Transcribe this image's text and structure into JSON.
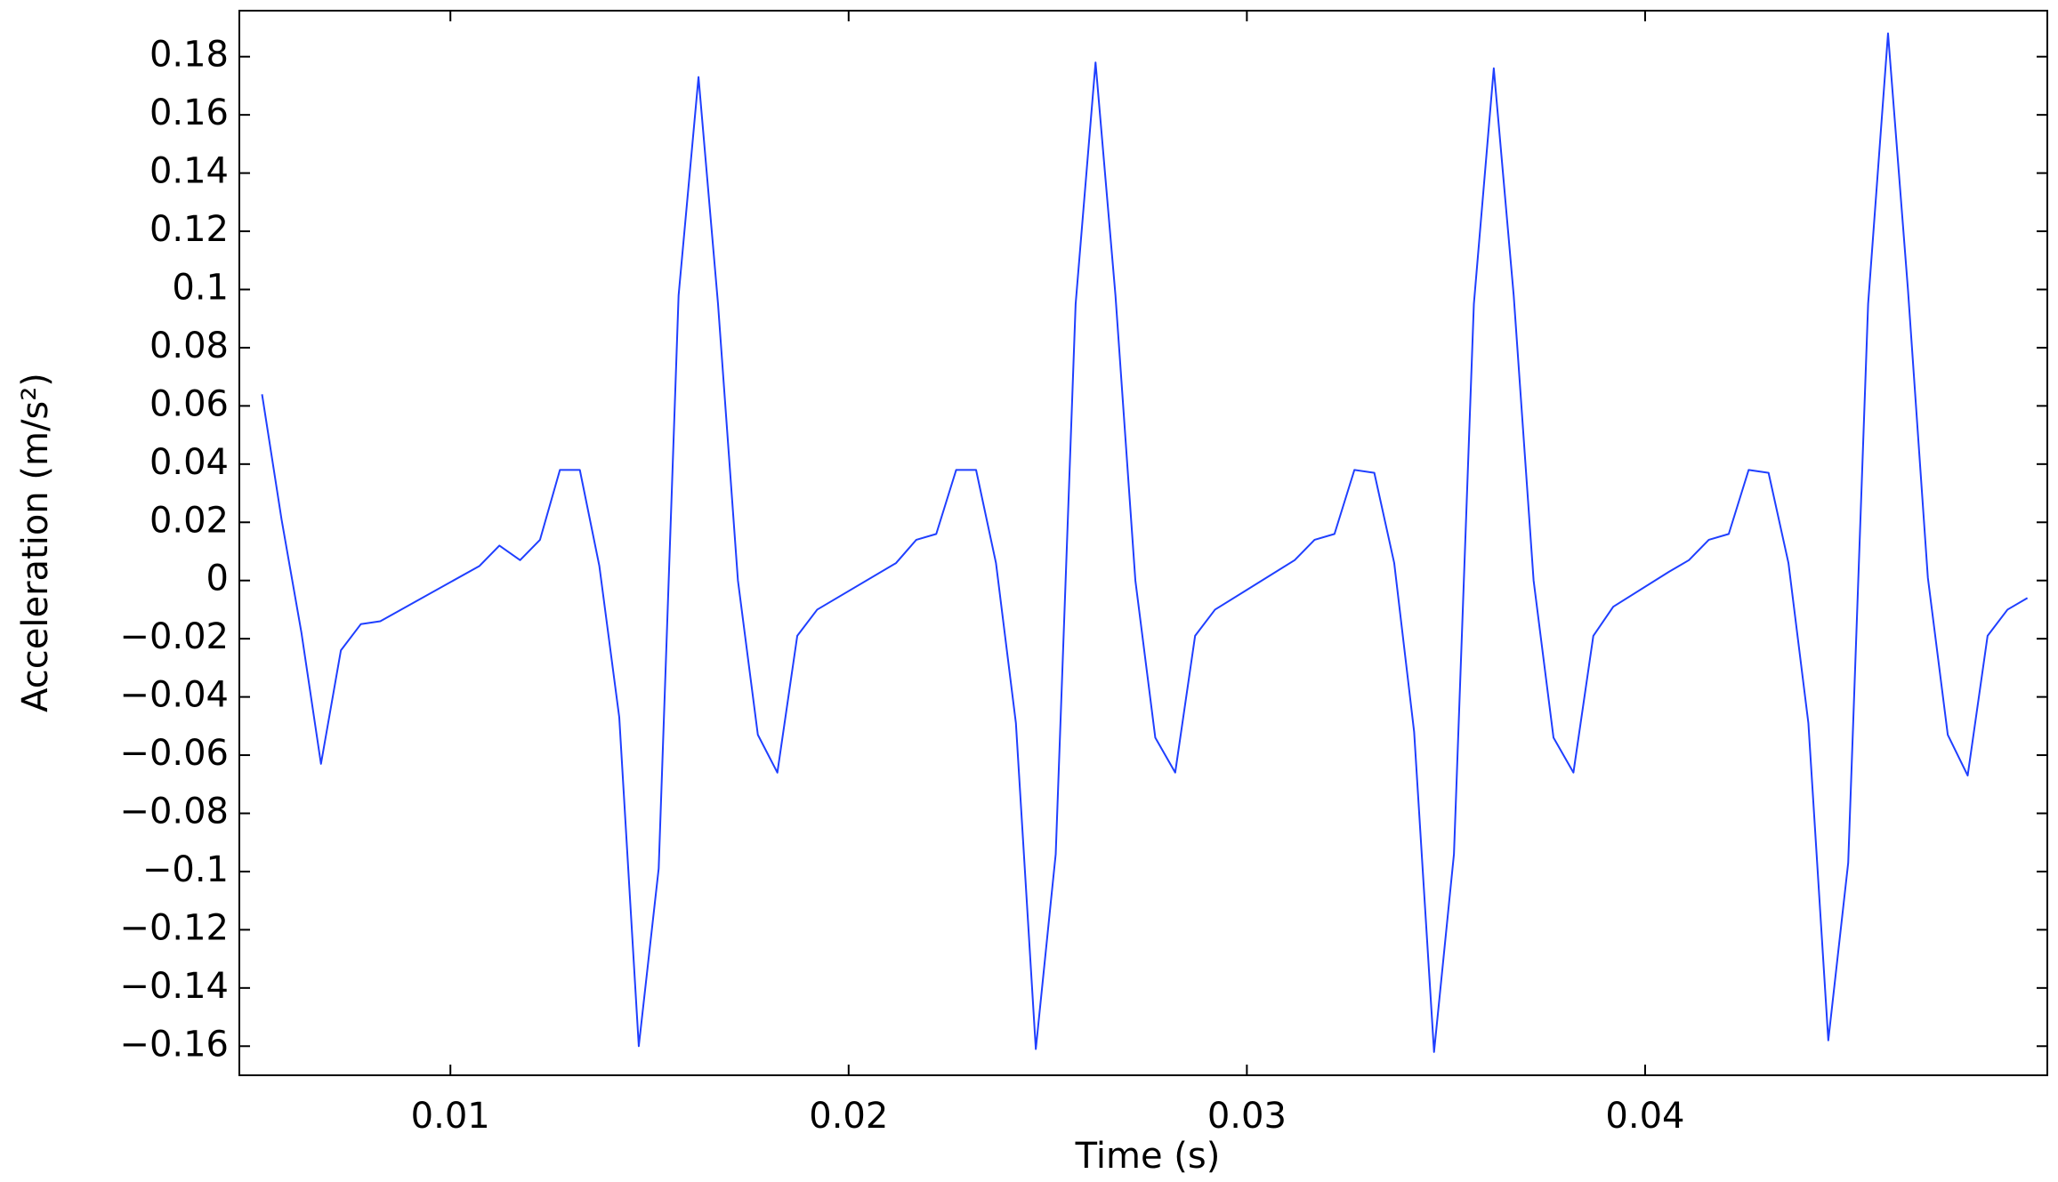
{
  "chart_data": {
    "type": "line",
    "xlabel": "Time (s)",
    "ylabel": "Acceleration (m/s²)",
    "xlim": [
      0.0047,
      0.0501
    ],
    "ylim": [
      -0.17,
      0.1958
    ],
    "xticks": [
      0.01,
      0.02,
      0.03,
      0.04
    ],
    "yticks": [
      {
        "value": -0.16,
        "label": "−0.16"
      },
      {
        "value": -0.14,
        "label": "−0.14"
      },
      {
        "value": -0.12,
        "label": "−0.12"
      },
      {
        "value": -0.1,
        "label": "−0.1"
      },
      {
        "value": -0.08,
        "label": "−0.08"
      },
      {
        "value": -0.06,
        "label": "−0.06"
      },
      {
        "value": -0.04,
        "label": "−0.04"
      },
      {
        "value": -0.02,
        "label": "−0.02"
      },
      0,
      0.02,
      0.04,
      0.06,
      0.08,
      0.1,
      0.12,
      0.14,
      0.16,
      0.18
    ],
    "x": [
      0.00527,
      0.00576,
      0.00626,
      0.00675,
      0.00725,
      0.00775,
      0.00824,
      0.01073,
      0.01123,
      0.01175,
      0.01225,
      0.01275,
      0.01325,
      0.01374,
      0.01424,
      0.01473,
      0.01523,
      0.01573,
      0.01623,
      0.01672,
      0.01722,
      0.01772,
      0.01821,
      0.01871,
      0.01921,
      0.02119,
      0.0217,
      0.0222,
      0.0227,
      0.0232,
      0.0237,
      0.0242,
      0.0247,
      0.0252,
      0.0257,
      0.0262,
      0.0267,
      0.0272,
      0.0277,
      0.0282,
      0.0287,
      0.0292,
      0.0312,
      0.0317,
      0.0322,
      0.0327,
      0.0332,
      0.0337,
      0.0342,
      0.0347,
      0.0352,
      0.0357,
      0.0362,
      0.0367,
      0.0372,
      0.0377,
      0.0382,
      0.0387,
      0.0392,
      0.0406,
      0.0411,
      0.0416,
      0.0421,
      0.0426,
      0.0431,
      0.0436,
      0.0441,
      0.0446,
      0.0451,
      0.0456,
      0.0461,
      0.0466,
      0.0471,
      0.0476,
      0.0481,
      0.0486,
      0.0491,
      0.0496
    ],
    "series": [
      {
        "color": "#1f3fff",
        "values": [
          0.064,
          0.021,
          -0.018,
          -0.063,
          -0.024,
          -0.015,
          -0.014,
          0.005,
          0.012,
          0.007,
          0.014,
          0.038,
          0.038,
          0.005,
          -0.047,
          -0.16,
          -0.099,
          0.098,
          0.173,
          0.095,
          0.0,
          -0.053,
          -0.066,
          -0.019,
          -0.01,
          0.006,
          0.014,
          0.016,
          0.038,
          0.038,
          0.006,
          -0.049,
          -0.161,
          -0.094,
          0.095,
          0.178,
          0.098,
          0.0,
          -0.054,
          -0.066,
          -0.019,
          -0.01,
          0.007,
          0.014,
          0.016,
          0.038,
          0.037,
          0.006,
          -0.052,
          -0.162,
          -0.094,
          0.095,
          0.176,
          0.098,
          0.0,
          -0.054,
          -0.066,
          -0.019,
          -0.009,
          0.003,
          0.007,
          0.014,
          0.016,
          0.038,
          0.037,
          0.006,
          -0.049,
          -0.158,
          -0.097,
          0.095,
          0.188,
          0.1,
          0.001,
          -0.053,
          -0.067,
          -0.019,
          -0.01,
          -0.006
        ]
      }
    ]
  }
}
